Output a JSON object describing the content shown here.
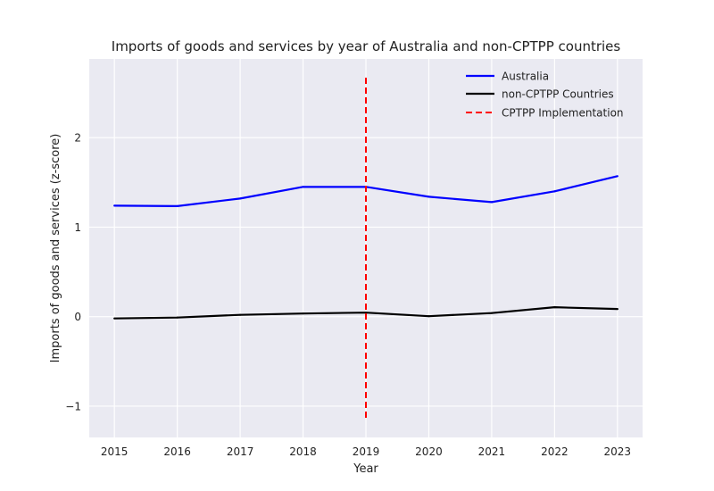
{
  "chart_data": {
    "type": "line",
    "title": "Imports of goods and services by year of Australia and non-CPTPP countries",
    "xlabel": "Year",
    "ylabel": "Imports of goods and services (z-score)",
    "x": [
      2015,
      2016,
      2017,
      2018,
      2019,
      2020,
      2021,
      2022,
      2023
    ],
    "xlim": [
      2014.6,
      2023.4
    ],
    "ylim": [
      -1.35,
      2.88
    ],
    "x_ticks": [
      "2015",
      "2016",
      "2017",
      "2018",
      "2019",
      "2020",
      "2021",
      "2022",
      "2023"
    ],
    "y_ticks": [
      "−1",
      "0",
      "1",
      "2"
    ],
    "y_tick_values": [
      -1,
      0,
      1,
      2
    ],
    "grid": true,
    "legend_position": "top-right",
    "series": [
      {
        "name": "Australia",
        "color": "#0000ff",
        "values": [
          1.24,
          1.235,
          1.32,
          1.45,
          1.45,
          1.34,
          1.28,
          1.4,
          1.57
        ]
      },
      {
        "name": "non-CPTPP Countries",
        "color": "#000000",
        "values": [
          -0.02,
          -0.01,
          0.02,
          0.035,
          0.045,
          0.005,
          0.04,
          0.105,
          0.085
        ]
      }
    ],
    "vline": {
      "name": "CPTPP Implementation",
      "x": 2019,
      "y_range": [
        -1.13,
        2.67
      ],
      "color": "#ff0000",
      "style": "dashed"
    }
  }
}
